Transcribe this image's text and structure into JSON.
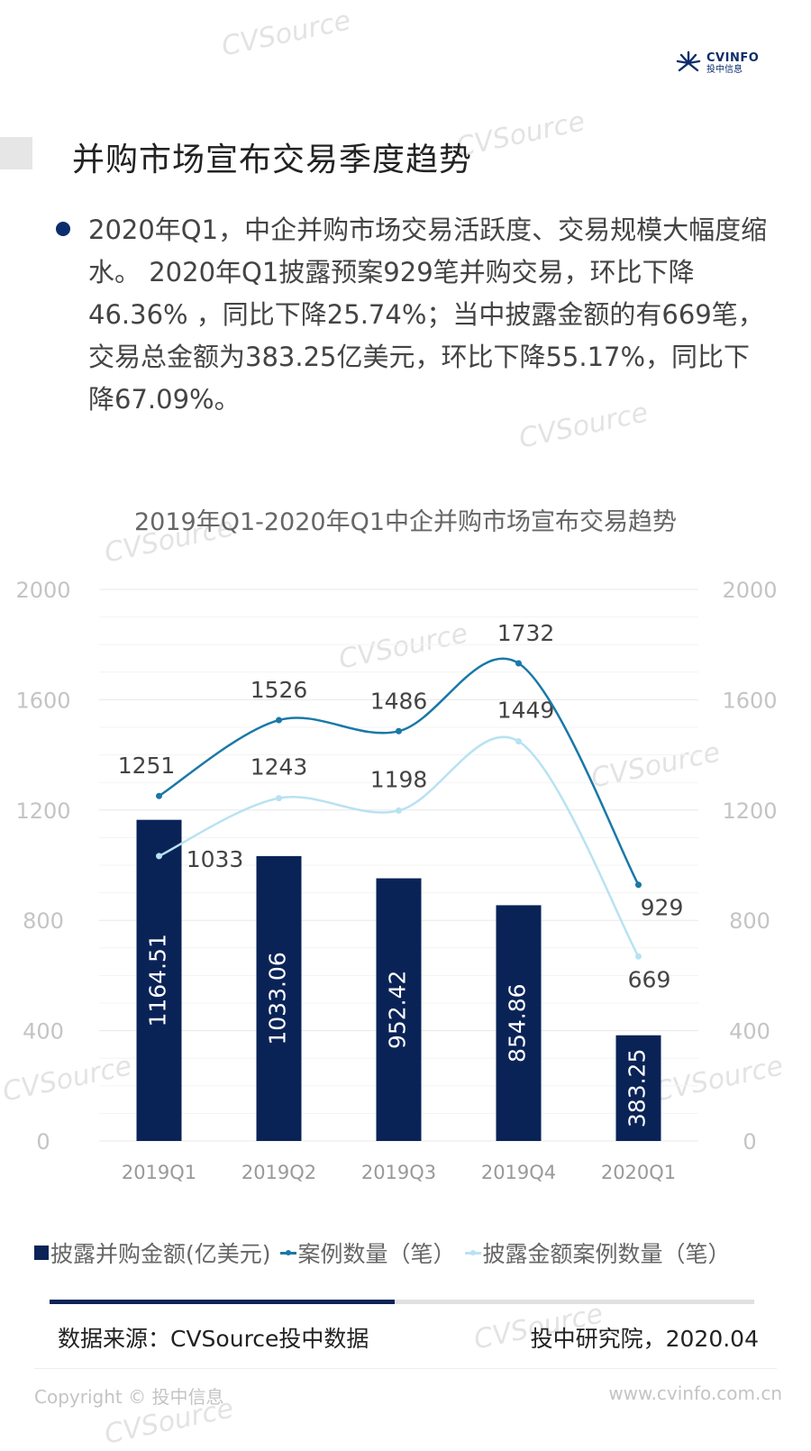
{
  "logo": {
    "brand": "CVINFO",
    "name_zh": "投中信息"
  },
  "watermark_text": "CVSource",
  "page_title": "并购市场宣布交易季度趋势",
  "bullet_text": "2020年Q1，中企并购市场交易活跃度、交易规模大幅度缩水。 2020年Q1披露预案929笔并购交易，环比下降46.36% ，同比下降25.74%；当中披露金额的有669笔，交易总金额为383.25亿美元，环比下降55.17%，同比下降67.09%。",
  "chart_data": {
    "type": "bar",
    "title": "2019年Q1-2020年Q1中企并购市场宣布交易趋势",
    "categories": [
      "2019Q1",
      "2019Q2",
      "2019Q3",
      "2019Q4",
      "2020Q1"
    ],
    "ylim": [
      0,
      2000
    ],
    "yticks": [
      0,
      400,
      800,
      1200,
      1600,
      2000
    ],
    "y2lim": [
      0,
      2000
    ],
    "y2ticks": [
      0,
      400,
      800,
      1200,
      1600,
      2000
    ],
    "series": [
      {
        "name": "披露并购金额(亿美元)",
        "kind": "bar",
        "values": [
          1164.51,
          1033.06,
          952.42,
          854.86,
          383.25
        ],
        "labels": [
          "1164.51",
          "1033.06",
          "952.42",
          "854.86",
          "383.25"
        ],
        "color": "#0a2357"
      },
      {
        "name": "案例数量（笔）",
        "kind": "line",
        "values": [
          1251,
          1526,
          1486,
          1732,
          929
        ],
        "labels": [
          "1251",
          "1526",
          "1486",
          "1732",
          "929"
        ],
        "color": "#1a78a8"
      },
      {
        "name": "披露金额案例数量（笔）",
        "kind": "line",
        "values": [
          1033,
          1243,
          1198,
          1449,
          669
        ],
        "labels": [
          "1033",
          "1243",
          "1198",
          "1449",
          "669"
        ],
        "color": "#b8e2f2"
      }
    ],
    "legend_position": "bottom",
    "grid": true
  },
  "progress": 0.49,
  "source_text": "数据来源：CVSource投中数据",
  "institute_text": "投中研究院，2020.04",
  "copyright_text": "Copyright © 投中信息",
  "website_text": "www.cvinfo.com.cn"
}
